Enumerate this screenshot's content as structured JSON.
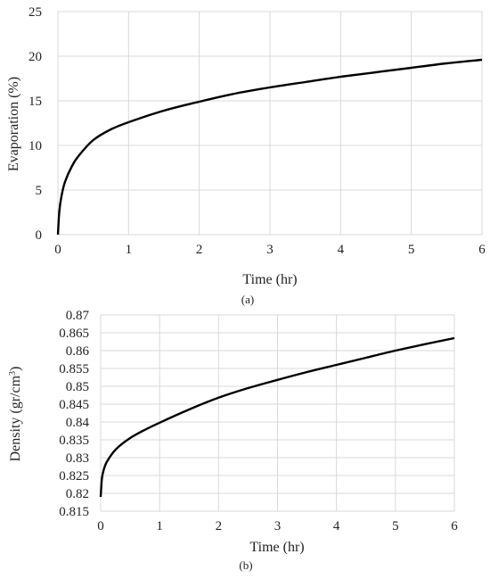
{
  "chart_data": [
    {
      "type": "line",
      "caption": "(a)",
      "xlabel": "Time (hr)",
      "ylabel": "Evaporation (%)",
      "xlim": [
        0,
        6
      ],
      "ylim": [
        0,
        25
      ],
      "x_ticks": [
        "0",
        "1",
        "2",
        "3",
        "4",
        "5",
        "6"
      ],
      "y_ticks": [
        "0",
        "5",
        "10",
        "15",
        "20",
        "25"
      ],
      "grid": true,
      "series": [
        {
          "x": [
            0,
            0.02,
            0.05,
            0.1,
            0.2,
            0.3,
            0.5,
            0.75,
            1,
            1.5,
            2,
            2.5,
            3,
            3.5,
            4,
            4.5,
            5,
            5.5,
            6
          ],
          "y": [
            0,
            2.6,
            4.3,
            5.9,
            7.7,
            8.9,
            10.6,
            11.8,
            12.6,
            13.9,
            14.9,
            15.8,
            16.5,
            17.1,
            17.7,
            18.2,
            18.7,
            19.2,
            19.6
          ]
        }
      ]
    },
    {
      "type": "line",
      "caption": "(b)",
      "xlabel": "Time (hr)",
      "ylabel_main": "Density (gr/cm",
      "ylabel_sup": "3",
      "ylabel_close": ")",
      "xlim": [
        0,
        6
      ],
      "ylim": [
        0.815,
        0.87
      ],
      "x_ticks": [
        "0",
        "1",
        "2",
        "3",
        "4",
        "5",
        "6"
      ],
      "y_ticks": [
        "0.815",
        "0.82",
        "0.825",
        "0.83",
        "0.835",
        "0.84",
        "0.845",
        "0.85",
        "0.855",
        "0.86",
        "0.865",
        "0.87"
      ],
      "grid": true,
      "series": [
        {
          "x": [
            0,
            0.02,
            0.05,
            0.1,
            0.2,
            0.3,
            0.5,
            0.75,
            1,
            1.5,
            2,
            2.5,
            3,
            3.5,
            4,
            4.5,
            5,
            5.5,
            6
          ],
          "y": [
            0.819,
            0.824,
            0.8265,
            0.8287,
            0.8312,
            0.833,
            0.8355,
            0.8378,
            0.8398,
            0.8435,
            0.8468,
            0.8495,
            0.8518,
            0.854,
            0.856,
            0.858,
            0.86,
            0.8618,
            0.8635
          ]
        }
      ]
    }
  ]
}
